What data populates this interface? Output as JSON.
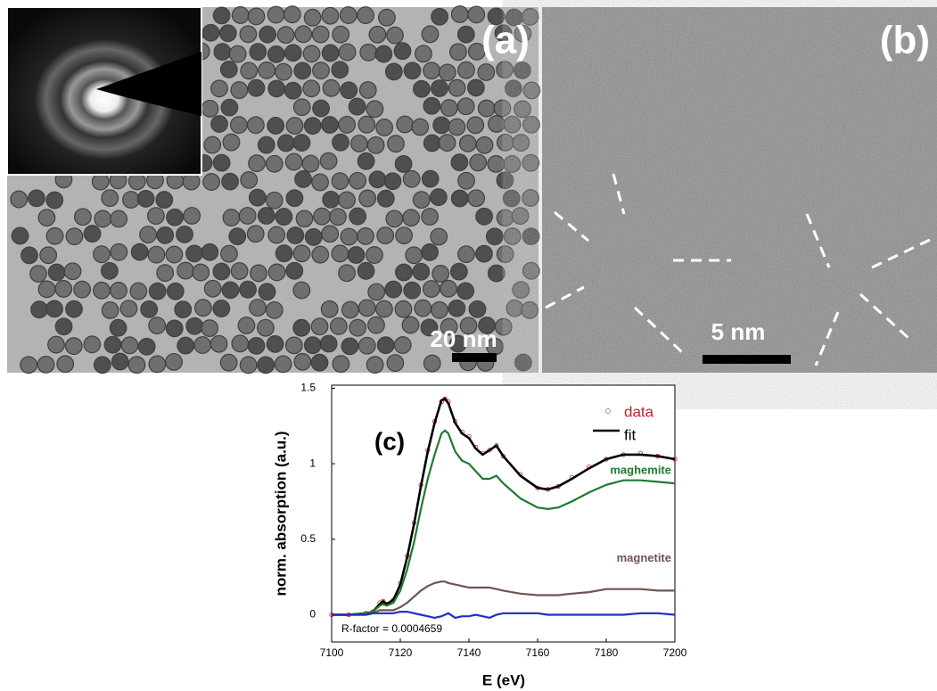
{
  "panels": [
    {
      "label": "(a)",
      "scale_bar": "20 nm"
    },
    {
      "label": "(b)",
      "scale_bar": "5 nm"
    }
  ],
  "chart_data": {
    "type": "line",
    "annotation": "(c)",
    "note": "R-factor = 0.0004659",
    "xlabel": "E (eV)",
    "ylabel": "norm. absorption (a.u.)",
    "x": [
      7100,
      7105,
      7110,
      7112,
      7114,
      7115,
      7116,
      7118,
      7120,
      7122,
      7124,
      7126,
      7128,
      7130,
      7132,
      7133,
      7134,
      7136,
      7138,
      7140,
      7142,
      7144,
      7146,
      7148,
      7150,
      7155,
      7160,
      7163,
      7166,
      7170,
      7175,
      7180,
      7185,
      7190,
      7195,
      7200
    ],
    "xlim": [
      7100,
      7200
    ],
    "xticks": [
      7100,
      7120,
      7140,
      7160,
      7180,
      7200
    ],
    "ylim": [
      -0.18,
      1.52
    ],
    "yticks": [
      0,
      0.5,
      1,
      1.5
    ],
    "series": [
      {
        "name": "data",
        "color": "#cc2222",
        "marker": "circle",
        "in_legend": true,
        "values": [
          0,
          0,
          0.01,
          0.02,
          0.08,
          0.09,
          0.07,
          0.1,
          0.21,
          0.39,
          0.61,
          0.86,
          1.09,
          1.28,
          1.41,
          1.43,
          1.41,
          1.28,
          1.21,
          1.18,
          1.11,
          1.07,
          1.09,
          1.12,
          1.05,
          0.93,
          0.84,
          0.83,
          0.85,
          0.91,
          0.98,
          1.03,
          1.06,
          1.07,
          1.05,
          1.03
        ]
      },
      {
        "name": "fit",
        "color": "#000000",
        "in_legend": true,
        "values": [
          0,
          0,
          0.01,
          0.02,
          0.07,
          0.09,
          0.07,
          0.1,
          0.2,
          0.38,
          0.6,
          0.85,
          1.08,
          1.27,
          1.42,
          1.43,
          1.4,
          1.27,
          1.2,
          1.17,
          1.1,
          1.06,
          1.09,
          1.12,
          1.05,
          0.92,
          0.84,
          0.83,
          0.85,
          0.9,
          0.97,
          1.03,
          1.06,
          1.06,
          1.05,
          1.03
        ]
      },
      {
        "name": "maghemite",
        "color": "#1e7a2e",
        "in_legend": false,
        "values": [
          0,
          0,
          0.01,
          0.02,
          0.06,
          0.07,
          0.06,
          0.08,
          0.16,
          0.3,
          0.48,
          0.7,
          0.9,
          1.06,
          1.2,
          1.22,
          1.2,
          1.08,
          1.02,
          1.0,
          0.95,
          0.9,
          0.9,
          0.92,
          0.87,
          0.77,
          0.71,
          0.7,
          0.71,
          0.75,
          0.81,
          0.86,
          0.89,
          0.89,
          0.88,
          0.87
        ]
      },
      {
        "name": "magnetite",
        "color": "#6e5550",
        "in_legend": false,
        "values": [
          0,
          0,
          0,
          0.01,
          0.03,
          0.03,
          0.03,
          0.03,
          0.05,
          0.08,
          0.12,
          0.16,
          0.19,
          0.21,
          0.22,
          0.22,
          0.21,
          0.2,
          0.19,
          0.18,
          0.18,
          0.18,
          0.18,
          0.17,
          0.16,
          0.14,
          0.13,
          0.13,
          0.13,
          0.14,
          0.15,
          0.17,
          0.17,
          0.17,
          0.16,
          0.16
        ]
      },
      {
        "color": "#1f2fbf",
        "in_legend": false,
        "values": [
          0,
          0,
          0,
          0.01,
          0.01,
          0.01,
          0.01,
          0.01,
          0.02,
          0.02,
          0.01,
          0,
          -0.01,
          -0.02,
          -0.01,
          0,
          0.01,
          -0.02,
          -0.01,
          -0.01,
          0,
          -0.01,
          -0.02,
          0,
          0.01,
          0.01,
          0.01,
          0,
          0,
          0,
          0,
          0,
          0,
          0.01,
          0.01,
          0
        ]
      }
    ]
  }
}
